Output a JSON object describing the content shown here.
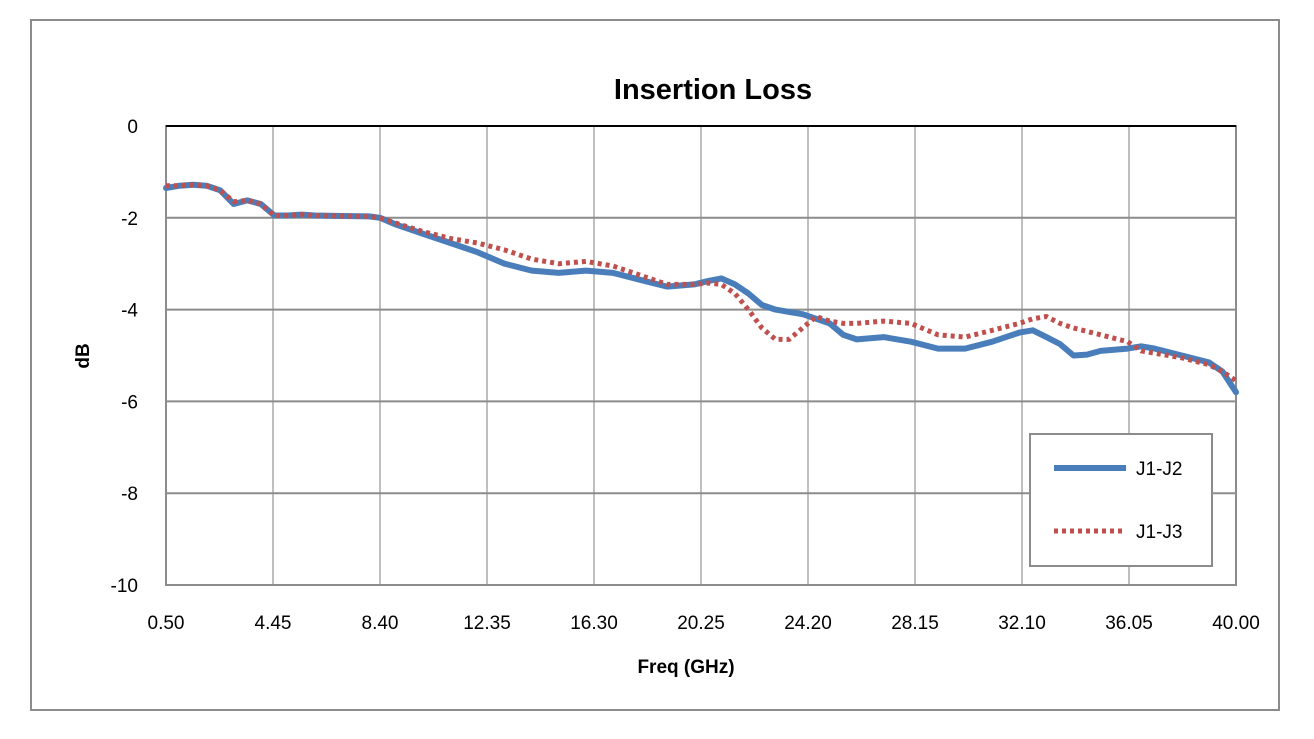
{
  "chart_data": {
    "type": "line",
    "title": "Insertion Loss",
    "xlabel": "Freq (GHz)",
    "ylabel": "dB",
    "xlim": [
      0.5,
      40.0
    ],
    "ylim": [
      -10,
      0
    ],
    "x_ticks": [
      "0.50",
      "4.45",
      "8.40",
      "12.35",
      "16.30",
      "20.25",
      "24.20",
      "28.15",
      "32.10",
      "36.05",
      "40.00"
    ],
    "x_tick_values": [
      0.5,
      4.45,
      8.4,
      12.35,
      16.3,
      20.25,
      24.2,
      28.15,
      32.1,
      36.05,
      40.0
    ],
    "y_ticks": [
      "0",
      "-2",
      "-4",
      "-6",
      "-8",
      "-10"
    ],
    "y_tick_values": [
      0,
      -2,
      -4,
      -6,
      -8,
      -10
    ],
    "grid": true,
    "legend_position": "bottom-right",
    "series": [
      {
        "name": "J1-J2",
        "color": "#4a7ebb",
        "style": "solid",
        "x": [
          0.5,
          1.0,
          1.5,
          2.0,
          2.5,
          3.0,
          3.5,
          4.0,
          4.5,
          5.0,
          5.5,
          6.0,
          7.0,
          8.0,
          8.4,
          9.0,
          10.0,
          11.0,
          12.0,
          13.0,
          14.0,
          15.0,
          16.0,
          17.0,
          18.0,
          19.0,
          20.0,
          20.5,
          21.0,
          21.5,
          22.0,
          22.5,
          23.0,
          23.5,
          24.0,
          25.0,
          25.5,
          26.0,
          27.0,
          28.0,
          29.0,
          30.0,
          31.0,
          32.0,
          32.5,
          33.0,
          33.5,
          34.0,
          34.5,
          35.0,
          36.0,
          36.5,
          37.0,
          38.0,
          39.0,
          39.5,
          40.0
        ],
        "values": [
          -1.35,
          -1.3,
          -1.28,
          -1.3,
          -1.4,
          -1.7,
          -1.62,
          -1.7,
          -1.95,
          -1.95,
          -1.93,
          -1.95,
          -1.96,
          -1.97,
          -2.0,
          -2.15,
          -2.35,
          -2.55,
          -2.75,
          -3.0,
          -3.15,
          -3.2,
          -3.15,
          -3.2,
          -3.35,
          -3.5,
          -3.45,
          -3.38,
          -3.32,
          -3.45,
          -3.65,
          -3.9,
          -4.0,
          -4.05,
          -4.1,
          -4.3,
          -4.55,
          -4.65,
          -4.6,
          -4.7,
          -4.85,
          -4.85,
          -4.7,
          -4.5,
          -4.45,
          -4.6,
          -4.75,
          -5.0,
          -4.98,
          -4.9,
          -4.85,
          -4.8,
          -4.85,
          -5.0,
          -5.15,
          -5.35,
          -5.8
        ]
      },
      {
        "name": "J1-J3",
        "color": "#c0504d",
        "style": "dotted",
        "x": [
          0.5,
          1.0,
          1.5,
          2.0,
          2.5,
          3.0,
          3.5,
          4.0,
          4.5,
          5.0,
          5.5,
          6.0,
          7.0,
          8.0,
          8.4,
          9.0,
          10.0,
          11.0,
          12.0,
          13.0,
          14.0,
          15.0,
          16.0,
          17.0,
          18.0,
          19.0,
          20.0,
          20.5,
          21.0,
          21.5,
          22.0,
          22.5,
          23.0,
          23.5,
          24.0,
          24.5,
          25.0,
          25.5,
          26.0,
          27.0,
          28.0,
          29.0,
          30.0,
          31.0,
          32.0,
          32.5,
          33.0,
          33.5,
          34.0,
          35.0,
          36.0,
          36.5,
          37.0,
          38.0,
          39.0,
          39.5,
          40.0
        ],
        "values": [
          -1.3,
          -1.3,
          -1.28,
          -1.3,
          -1.4,
          -1.65,
          -1.62,
          -1.7,
          -1.95,
          -1.95,
          -1.93,
          -1.95,
          -1.96,
          -1.97,
          -2.0,
          -2.12,
          -2.3,
          -2.45,
          -2.55,
          -2.7,
          -2.9,
          -3.0,
          -2.95,
          -3.05,
          -3.25,
          -3.45,
          -3.45,
          -3.42,
          -3.45,
          -3.65,
          -4.0,
          -4.4,
          -4.65,
          -4.65,
          -4.4,
          -4.15,
          -4.25,
          -4.3,
          -4.3,
          -4.25,
          -4.3,
          -4.55,
          -4.6,
          -4.45,
          -4.3,
          -4.2,
          -4.15,
          -4.3,
          -4.4,
          -4.55,
          -4.7,
          -4.9,
          -4.95,
          -5.05,
          -5.2,
          -5.35,
          -5.55
        ]
      }
    ]
  }
}
